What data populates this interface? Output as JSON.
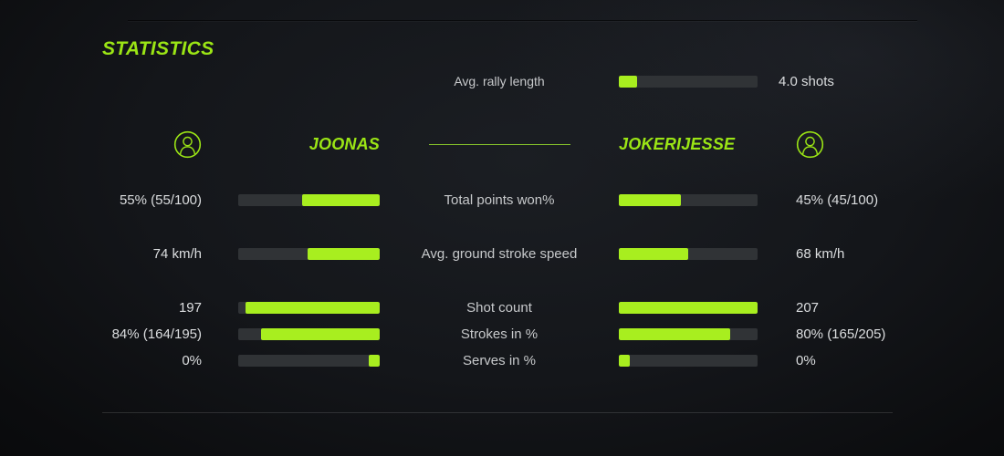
{
  "title": "STATISTICS",
  "colors": {
    "accent_text": "#9be515",
    "accent_bar": "#a8ee1f",
    "bar_track": "#303336",
    "label_text": "#c7c9cb",
    "value_text": "#dcdee0"
  },
  "rally": {
    "label": "Avg. rally length",
    "value": "4.0 shots",
    "fill_pct": 13
  },
  "players": {
    "left": "JOONAS",
    "right": "JOKERIJESSE"
  },
  "stats": [
    {
      "label": "Total points won%",
      "left_value": "55% (55/100)",
      "right_value": "45% (45/100)",
      "left_fill_pct": 55,
      "right_fill_pct": 45
    },
    {
      "label": "Avg. ground stroke speed",
      "left_value": "74 km/h",
      "right_value": "68 km/h",
      "left_fill_pct": 51,
      "right_fill_pct": 50
    },
    {
      "label": "Shot count",
      "left_value": "197",
      "right_value": "207",
      "left_fill_pct": 95,
      "right_fill_pct": 100
    },
    {
      "label": "Strokes in %",
      "left_value": "84% (164/195)",
      "right_value": "80% (165/205)",
      "left_fill_pct": 84,
      "right_fill_pct": 80
    },
    {
      "label": "Serves in %",
      "left_value": "0%",
      "right_value": "0%",
      "left_fill_pct": 8,
      "right_fill_pct": 8
    }
  ]
}
